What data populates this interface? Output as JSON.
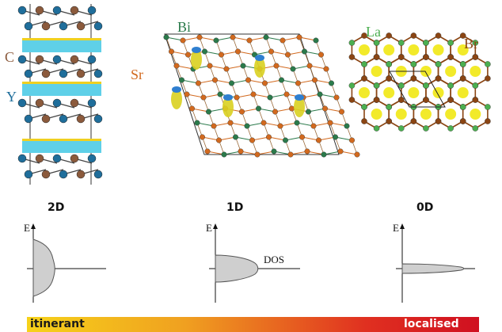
{
  "structures": {
    "left": {
      "labels": [
        "C",
        "Y"
      ],
      "label_colors": [
        "#8b5a3c",
        "#1f6e9b"
      ]
    },
    "middle": {
      "labels": [
        "Bi",
        "Sr"
      ],
      "label_colors": [
        "#2b7a4b",
        "#d2691e"
      ]
    },
    "right": {
      "labels": [
        "La",
        "Br"
      ],
      "label_colors": [
        "#4caf50",
        "#8b4513"
      ]
    }
  },
  "dimensionality": [
    "2D",
    "1D",
    "0D"
  ],
  "plots": {
    "energy_label": "E",
    "dos_label": "DOS"
  },
  "gradient": {
    "start_label": "itinerant",
    "end_label": "localised",
    "colors": [
      "#f6d21a",
      "#f0a020",
      "#e03020",
      "#d01020"
    ]
  }
}
